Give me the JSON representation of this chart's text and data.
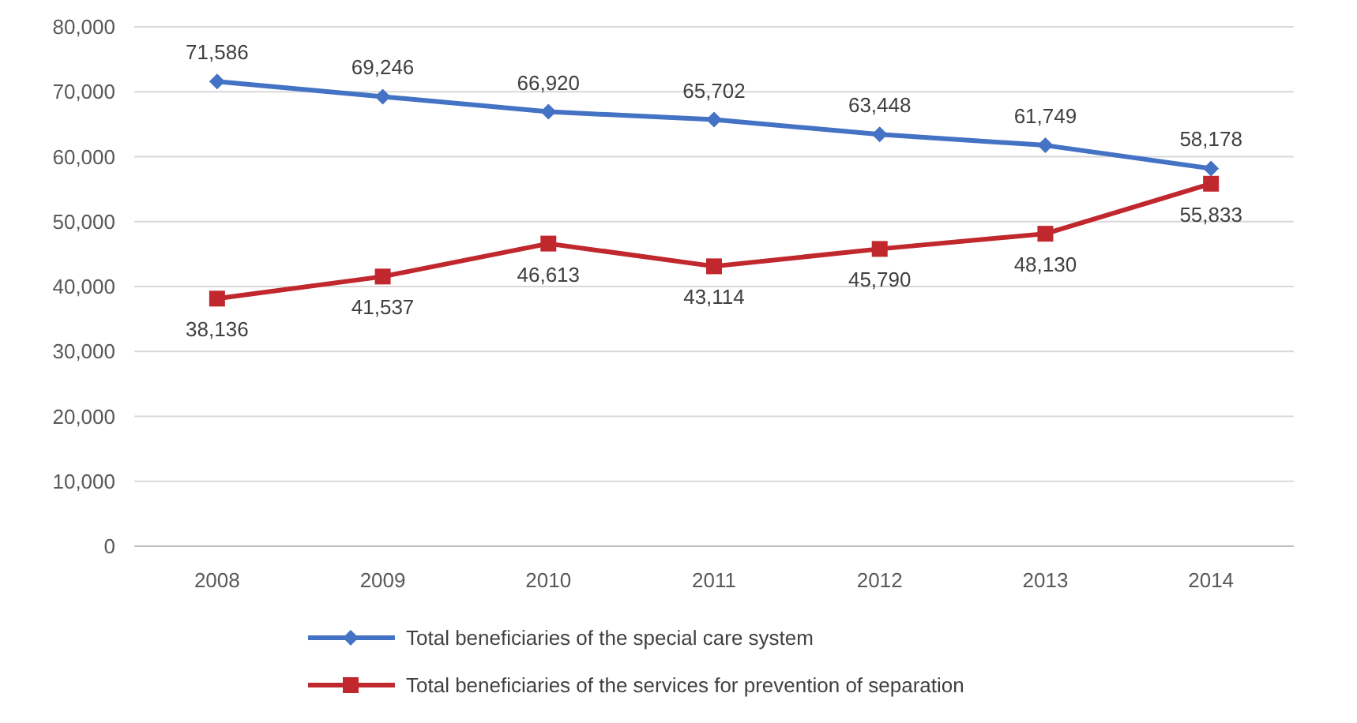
{
  "chart_data": {
    "type": "line",
    "categories": [
      "2008",
      "2009",
      "2010",
      "2011",
      "2012",
      "2013",
      "2014"
    ],
    "series": [
      {
        "name": "Total beneficiaries of the special care system",
        "color": "#4472c4",
        "marker": "diamond",
        "values": [
          71586,
          69246,
          66920,
          65702,
          63448,
          61749,
          58178
        ],
        "value_labels": [
          "71,586",
          "69,246",
          "66,920",
          "65,702",
          "63,448",
          "61,749",
          "58,178"
        ]
      },
      {
        "name": "Total beneficiaries of the services for prevention of separation",
        "color": "#c0282d",
        "marker": "square",
        "values": [
          38136,
          41537,
          46613,
          43114,
          45790,
          48130,
          55833
        ],
        "value_labels": [
          "38,136",
          "41,537",
          "46,613",
          "43,114",
          "45,790",
          "48,130",
          "55,833"
        ]
      }
    ],
    "ylim": [
      0,
      80000
    ],
    "yticks": [
      {
        "value": 0,
        "label": "0"
      },
      {
        "value": 10000,
        "label": "10,000"
      },
      {
        "value": 20000,
        "label": "20,000"
      },
      {
        "value": 30000,
        "label": "30,000"
      },
      {
        "value": 40000,
        "label": "40,000"
      },
      {
        "value": 50000,
        "label": "50,000"
      },
      {
        "value": 60000,
        "label": "60,000"
      },
      {
        "value": 70000,
        "label": "70,000"
      },
      {
        "value": 80000,
        "label": "80,000"
      }
    ],
    "grid": "y",
    "legend": "bottom"
  }
}
